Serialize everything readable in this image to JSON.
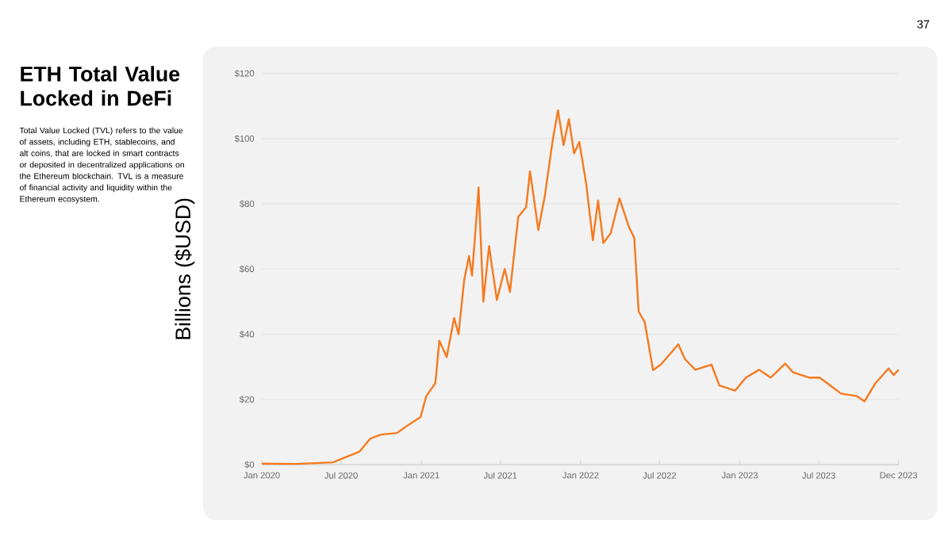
{
  "chart_data": {
    "type": "line",
    "title": "ETH Total Value Locked in DeFi",
    "subtitle": "Total Value Locked (TVL) refers to the value of assets, including ETH, stablecoins, and alt coins, that are locked in smart contracts or deposited in decentralized applications on the Ethereum blockchain. TVL is a measure of financial activity and liquidity within the Ethereum ecosystem.",
    "ylabel": "Billions ($USD)",
    "annotations": [
      "37"
    ],
    "x": [
      "2020-01-01",
      "2020-03-18",
      "2020-06-12",
      "2020-08-12",
      "2020-09-06",
      "2020-09-30",
      "2020-11-06",
      "2020-11-30",
      "2020-12-30",
      "2021-01-12",
      "2021-02-02",
      "2021-02-11",
      "2021-02-28",
      "2021-03-17",
      "2021-03-27",
      "2021-04-09",
      "2021-04-20",
      "2021-04-27",
      "2021-05-05",
      "2021-05-12",
      "2021-05-23",
      "2021-06-05",
      "2021-06-23",
      "2021-07-11",
      "2021-07-23",
      "2021-08-11",
      "2021-08-29",
      "2021-09-07",
      "2021-09-26",
      "2021-10-11",
      "2021-10-29",
      "2021-11-10",
      "2021-11-23",
      "2021-12-05",
      "2021-12-17",
      "2021-12-29",
      "2022-01-14",
      "2022-01-29",
      "2022-02-10",
      "2022-02-22",
      "2022-03-11",
      "2022-03-31",
      "2022-04-22",
      "2022-05-04",
      "2022-05-14",
      "2022-05-28",
      "2022-06-16",
      "2022-07-04",
      "2022-08-13",
      "2022-08-28",
      "2022-09-21",
      "2022-10-28",
      "2022-11-15",
      "2022-12-21",
      "2023-01-15",
      "2023-02-14",
      "2023-03-13",
      "2023-04-15",
      "2023-05-03",
      "2023-06-09",
      "2023-07-03",
      "2023-07-27",
      "2023-08-21",
      "2023-09-27",
      "2023-10-14",
      "2023-11-08",
      "2023-12-08",
      "2023-12-20",
      "2023-12-31"
    ],
    "series": [
      {
        "color": "#f57a1f",
        "values": [
          0.3,
          0.2,
          0.7,
          4,
          8,
          9.2,
          9.7,
          12,
          14.6,
          21,
          25,
          38,
          33,
          45,
          40,
          56.6,
          64,
          58,
          72,
          85,
          50,
          67,
          50.5,
          60,
          53,
          76,
          79,
          90,
          72,
          82.5,
          99.5,
          108.7,
          98,
          106,
          95.5,
          99,
          86,
          68.8,
          81,
          68,
          71,
          81.7,
          72.8,
          69.6,
          47,
          43.7,
          29,
          30.7,
          36.9,
          32.4,
          29.1,
          30.7,
          24.3,
          22.7,
          26.7,
          29.1,
          26.7,
          31,
          28.3,
          26.7,
          26.7,
          24.3,
          21.8,
          21,
          19.4,
          25,
          29.5,
          27.5,
          29.1
        ]
      }
    ],
    "xlim": [
      "2020-01-01",
      "2023-12-31"
    ],
    "xticks": [
      {
        "value": "2020-01-01",
        "label": "Jan 2020"
      },
      {
        "value": "2020-07-01",
        "label": "Jul 2020"
      },
      {
        "value": "2021-01-01",
        "label": "Jan 2021"
      },
      {
        "value": "2021-07-01",
        "label": "Jul 2021"
      },
      {
        "value": "2022-01-01",
        "label": "Jan 2022"
      },
      {
        "value": "2022-07-01",
        "label": "Jul 2022"
      },
      {
        "value": "2023-01-01",
        "label": "Jan 2023"
      },
      {
        "value": "2023-07-01",
        "label": "Jul 2023"
      },
      {
        "value": "2023-12-31",
        "label": "Dec 2023"
      }
    ],
    "ylim": [
      0,
      120
    ],
    "yticks": [
      {
        "value": 0,
        "label": "$0"
      },
      {
        "value": 20,
        "label": "$20"
      },
      {
        "value": 40,
        "label": "$40"
      },
      {
        "value": 60,
        "label": "$60"
      },
      {
        "value": 80,
        "label": "$80"
      },
      {
        "value": 100,
        "label": "$100"
      },
      {
        "value": 120,
        "label": "$120"
      }
    ],
    "grid": "y",
    "marker": "none",
    "line_style": "solid"
  }
}
